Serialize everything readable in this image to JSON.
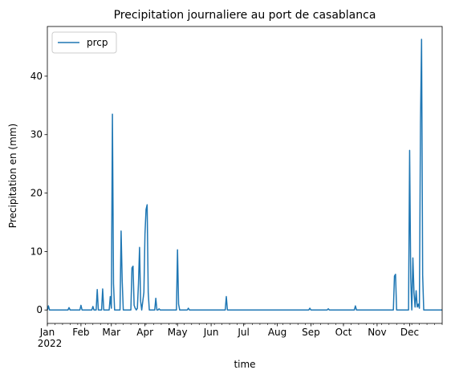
{
  "chart_data": {
    "type": "line",
    "title": "Precipitation journaliere au port de casablanca",
    "xlabel": "time",
    "ylabel": "Precipitation en (mm)",
    "xlim": [
      "2022-01-01",
      "2022-12-31"
    ],
    "ylim": [
      -2.3,
      48.5
    ],
    "y_ticks": [
      0,
      10,
      20,
      30,
      40
    ],
    "x_ticks": [
      {
        "date": "2022-01-01",
        "label": "Jan",
        "sublabel": "2022"
      },
      {
        "date": "2022-02-01",
        "label": "Feb"
      },
      {
        "date": "2022-03-01",
        "label": "Mar"
      },
      {
        "date": "2022-04-01",
        "label": "Apr"
      },
      {
        "date": "2022-05-01",
        "label": "May"
      },
      {
        "date": "2022-06-01",
        "label": "Jun"
      },
      {
        "date": "2022-07-01",
        "label": "Jul"
      },
      {
        "date": "2022-08-01",
        "label": "Aug"
      },
      {
        "date": "2022-09-01",
        "label": "Sep"
      },
      {
        "date": "2022-10-01",
        "label": "Oct"
      },
      {
        "date": "2022-11-01",
        "label": "Nov"
      },
      {
        "date": "2022-12-01",
        "label": "Dec"
      }
    ],
    "grid": false,
    "legend": {
      "position": "top-left",
      "entries": [
        "prcp"
      ]
    },
    "color": "#1f77b4",
    "series": [
      {
        "name": "prcp",
        "points": [
          [
            "2022-01-01",
            0
          ],
          [
            "2022-01-02",
            0.7
          ],
          [
            "2022-01-03",
            0
          ],
          [
            "2022-01-20",
            0
          ],
          [
            "2022-01-21",
            0.4
          ],
          [
            "2022-01-22",
            0
          ],
          [
            "2022-01-31",
            0
          ],
          [
            "2022-02-01",
            0.8
          ],
          [
            "2022-02-02",
            0
          ],
          [
            "2022-02-11",
            0
          ],
          [
            "2022-02-12",
            0.6
          ],
          [
            "2022-02-13",
            0
          ],
          [
            "2022-02-15",
            0
          ],
          [
            "2022-02-16",
            3.5
          ],
          [
            "2022-02-17",
            0
          ],
          [
            "2022-02-20",
            0
          ],
          [
            "2022-02-21",
            3.6
          ],
          [
            "2022-02-22",
            0
          ],
          [
            "2022-02-27",
            0
          ],
          [
            "2022-02-28",
            2.3
          ],
          [
            "2022-03-01",
            0.3
          ],
          [
            "2022-03-02",
            33.5
          ],
          [
            "2022-03-03",
            4.5
          ],
          [
            "2022-03-04",
            0
          ],
          [
            "2022-03-09",
            0
          ],
          [
            "2022-03-10",
            13.5
          ],
          [
            "2022-03-11",
            5.0
          ],
          [
            "2022-03-12",
            0
          ],
          [
            "2022-03-19",
            0
          ],
          [
            "2022-03-20",
            7.2
          ],
          [
            "2022-03-21",
            7.5
          ],
          [
            "2022-03-22",
            0.8
          ],
          [
            "2022-03-23",
            0.3
          ],
          [
            "2022-03-24",
            0
          ],
          [
            "2022-03-25",
            0.3
          ],
          [
            "2022-03-26",
            4.5
          ],
          [
            "2022-03-27",
            10.7
          ],
          [
            "2022-03-28",
            1.5
          ],
          [
            "2022-03-29",
            0
          ],
          [
            "2022-03-31",
            3.0
          ],
          [
            "2022-04-01",
            13.0
          ],
          [
            "2022-04-02",
            17.2
          ],
          [
            "2022-04-03",
            18.0
          ],
          [
            "2022-04-04",
            3.0
          ],
          [
            "2022-04-05",
            0
          ],
          [
            "2022-04-10",
            0
          ],
          [
            "2022-04-11",
            2.0
          ],
          [
            "2022-04-12",
            0
          ],
          [
            "2022-04-13",
            0
          ],
          [
            "2022-04-14",
            0.2
          ],
          [
            "2022-04-15",
            0
          ],
          [
            "2022-04-30",
            0
          ],
          [
            "2022-05-01",
            10.3
          ],
          [
            "2022-05-02",
            1.0
          ],
          [
            "2022-05-03",
            0
          ],
          [
            "2022-05-10",
            0
          ],
          [
            "2022-05-11",
            0.3
          ],
          [
            "2022-05-12",
            0
          ],
          [
            "2022-06-14",
            0
          ],
          [
            "2022-06-15",
            2.3
          ],
          [
            "2022-06-16",
            0
          ],
          [
            "2022-08-30",
            0
          ],
          [
            "2022-08-31",
            0.3
          ],
          [
            "2022-09-01",
            0
          ],
          [
            "2022-09-16",
            0
          ],
          [
            "2022-09-17",
            0.2
          ],
          [
            "2022-09-18",
            0
          ],
          [
            "2022-10-11",
            0
          ],
          [
            "2022-10-12",
            0.7
          ],
          [
            "2022-10-13",
            0
          ],
          [
            "2022-11-16",
            0
          ],
          [
            "2022-11-17",
            5.8
          ],
          [
            "2022-11-18",
            6.1
          ],
          [
            "2022-11-19",
            0
          ],
          [
            "2022-11-30",
            0
          ],
          [
            "2022-12-01",
            27.3
          ],
          [
            "2022-12-02",
            5.5
          ],
          [
            "2022-12-03",
            0
          ],
          [
            "2022-12-04",
            8.9
          ],
          [
            "2022-12-05",
            3.0
          ],
          [
            "2022-12-06",
            0.5
          ],
          [
            "2022-12-07",
            3.3
          ],
          [
            "2022-12-08",
            0.5
          ],
          [
            "2022-12-09",
            1.0
          ],
          [
            "2022-12-10",
            0.3
          ],
          [
            "2022-12-11",
            32.0
          ],
          [
            "2022-12-12",
            46.3
          ],
          [
            "2022-12-13",
            6.0
          ],
          [
            "2022-12-14",
            0
          ],
          [
            "2022-12-31",
            0
          ]
        ]
      }
    ]
  }
}
